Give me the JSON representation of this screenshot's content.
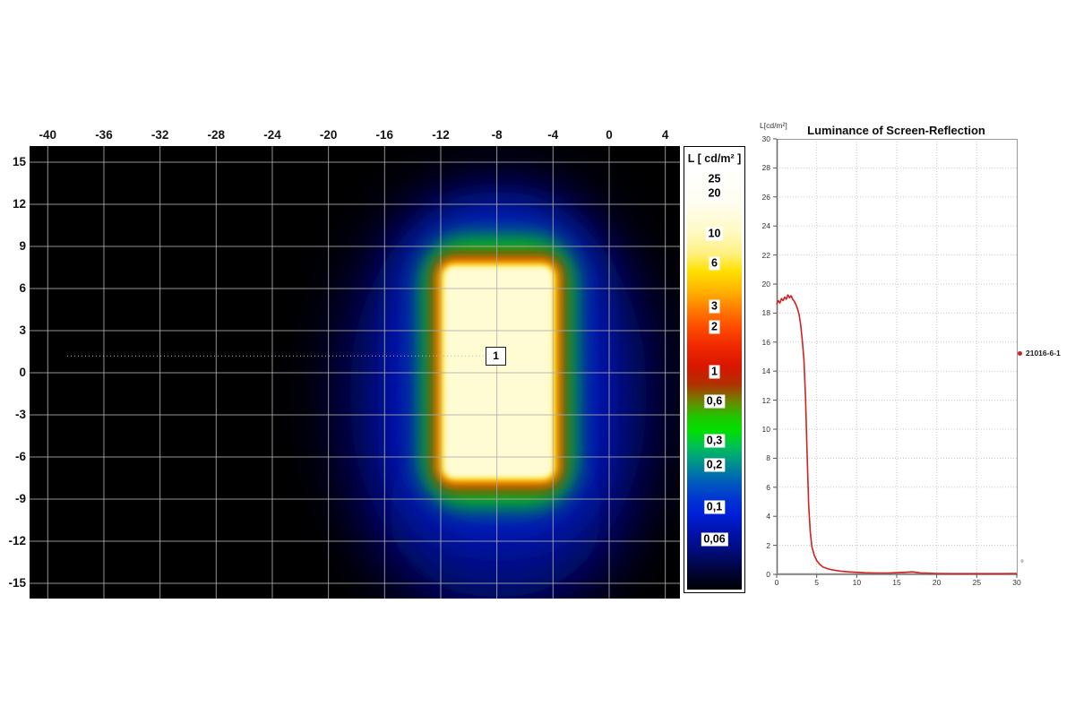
{
  "chart_data": [
    {
      "type": "heatmap",
      "title": "",
      "xlim": [
        -41.3,
        5.0
      ],
      "ylim": [
        -16.1,
        16.2
      ],
      "x_ticks": [
        -40,
        -36,
        -32,
        -28,
        -24,
        -20,
        -16,
        -12,
        -8,
        -4,
        0,
        4
      ],
      "y_ticks": [
        15,
        12,
        9,
        6,
        3,
        0,
        -3,
        -6,
        -9,
        -12,
        -15
      ],
      "grid": "on",
      "hotspot_rect_deg": {
        "x": [
          -11.8,
          -4.0
        ],
        "y": [
          -7.5,
          7.6
        ]
      },
      "hotspot_peak_cd_m2": 25,
      "background_cd_m2": 0.03,
      "marker": {
        "label": "1",
        "x": -8.1,
        "y": 1.2
      },
      "colorbar": {
        "title": "L [ cd/m² ]",
        "labels": [
          {
            "text": "25",
            "pos": 2.1
          },
          {
            "text": "20",
            "pos": 5.6
          },
          {
            "text": "10",
            "pos": 15.2
          },
          {
            "text": "6",
            "pos": 22.3
          },
          {
            "text": "3",
            "pos": 32.4
          },
          {
            "text": "2",
            "pos": 37.3
          },
          {
            "text": "1",
            "pos": 48.1
          },
          {
            "text": "0,6",
            "pos": 55.2
          },
          {
            "text": "0,3",
            "pos": 64.6
          },
          {
            "text": "0,2",
            "pos": 70.2
          },
          {
            "text": "0,1",
            "pos": 80.3
          },
          {
            "text": "0,06",
            "pos": 88.0
          }
        ],
        "gradient": [
          {
            "color": "#ffffff",
            "pos": 0
          },
          {
            "color": "#fffef0",
            "pos": 8
          },
          {
            "color": "#fff9c0",
            "pos": 15
          },
          {
            "color": "#fff07e",
            "pos": 20
          },
          {
            "color": "#ffe100",
            "pos": 24
          },
          {
            "color": "#ffb000",
            "pos": 29
          },
          {
            "color": "#ff7d00",
            "pos": 33
          },
          {
            "color": "#ff5000",
            "pos": 37
          },
          {
            "color": "#ef2800",
            "pos": 42
          },
          {
            "color": "#d81600",
            "pos": 47
          },
          {
            "color": "#b03000",
            "pos": 51
          },
          {
            "color": "#6f8400",
            "pos": 55
          },
          {
            "color": "#1ec800",
            "pos": 59
          },
          {
            "color": "#00e000",
            "pos": 62
          },
          {
            "color": "#00be58",
            "pos": 66
          },
          {
            "color": "#009090",
            "pos": 70
          },
          {
            "color": "#0060b8",
            "pos": 74
          },
          {
            "color": "#0038d0",
            "pos": 78
          },
          {
            "color": "#0020d8",
            "pos": 82
          },
          {
            "color": "#0013ae",
            "pos": 86
          },
          {
            "color": "#000d86",
            "pos": 90
          },
          {
            "color": "#000540",
            "pos": 95
          },
          {
            "color": "#000000",
            "pos": 100
          }
        ]
      }
    },
    {
      "type": "line",
      "title": "Luminance of Screen-Reflection",
      "corner_label": "L[cd/m²]",
      "x_unit": "°",
      "xlabel": "",
      "ylabel": "L[cd/m²]",
      "xlim": [
        0,
        30
      ],
      "ylim": [
        0,
        30
      ],
      "x_ticks": [
        0,
        5,
        10,
        15,
        20,
        25,
        30
      ],
      "y_ticks": [
        0,
        2,
        4,
        6,
        8,
        10,
        12,
        14,
        16,
        18,
        20,
        22,
        24,
        26,
        28,
        30
      ],
      "grid": "dotted",
      "legend_position": "right",
      "series": [
        {
          "name": "21016-6-1",
          "color": "#d42020",
          "points": [
            [
              0,
              18.6
            ],
            [
              0.2,
              18.85
            ],
            [
              0.4,
              18.7
            ],
            [
              0.6,
              19.0
            ],
            [
              0.8,
              18.85
            ],
            [
              1.0,
              19.1
            ],
            [
              1.2,
              18.95
            ],
            [
              1.4,
              19.25
            ],
            [
              1.6,
              19.05
            ],
            [
              1.8,
              19.2
            ],
            [
              2.0,
              18.95
            ],
            [
              2.2,
              18.8
            ],
            [
              2.4,
              18.6
            ],
            [
              2.6,
              18.3
            ],
            [
              2.8,
              17.9
            ],
            [
              3.0,
              17.2
            ],
            [
              3.2,
              16.1
            ],
            [
              3.4,
              14.8
            ],
            [
              3.6,
              12.2
            ],
            [
              3.8,
              8.4
            ],
            [
              4.0,
              4.8
            ],
            [
              4.2,
              2.9
            ],
            [
              4.4,
              1.9
            ],
            [
              4.7,
              1.3
            ],
            [
              5.0,
              0.95
            ],
            [
              5.4,
              0.68
            ],
            [
              5.8,
              0.5
            ],
            [
              6.4,
              0.38
            ],
            [
              7,
              0.3
            ],
            [
              8,
              0.22
            ],
            [
              9,
              0.17
            ],
            [
              10,
              0.14
            ],
            [
              11,
              0.11
            ],
            [
              12,
              0.1
            ],
            [
              13,
              0.09
            ],
            [
              14,
              0.09
            ],
            [
              15,
              0.12
            ],
            [
              16,
              0.14
            ],
            [
              17,
              0.17
            ],
            [
              17.6,
              0.13
            ],
            [
              18,
              0.1
            ],
            [
              19,
              0.08
            ],
            [
              20,
              0.06
            ],
            [
              22,
              0.05
            ],
            [
              24,
              0.05
            ],
            [
              26,
              0.05
            ],
            [
              28,
              0.05
            ],
            [
              30,
              0.06
            ]
          ]
        }
      ]
    }
  ]
}
